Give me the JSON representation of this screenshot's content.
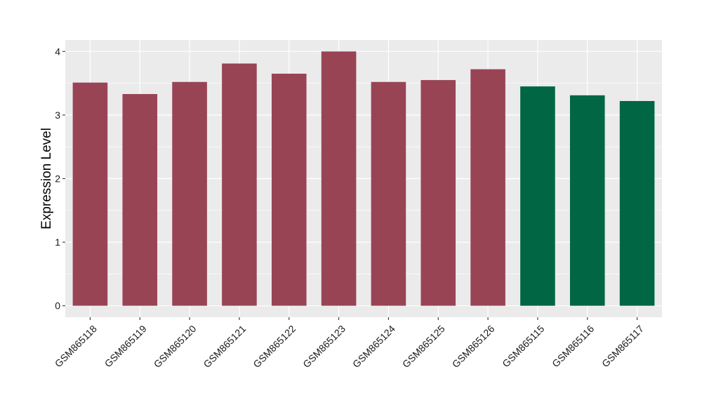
{
  "chart_data": {
    "type": "bar",
    "title": "",
    "xlabel": "",
    "ylabel": "Expression Level",
    "ylim": [
      -0.18,
      4.18
    ],
    "yticks": [
      0,
      1,
      2,
      3,
      4
    ],
    "ytick_labels": [
      "0",
      "1",
      "2",
      "3",
      "4"
    ],
    "grid": true,
    "legend": "none",
    "categories": [
      "GSM865118",
      "GSM865119",
      "GSM865120",
      "GSM865121",
      "GSM865122",
      "GSM865123",
      "GSM865124",
      "GSM865125",
      "GSM865126",
      "GSM865115",
      "GSM865116",
      "GSM865117"
    ],
    "values": [
      3.51,
      3.33,
      3.52,
      3.81,
      3.65,
      4.0,
      3.52,
      3.55,
      3.72,
      3.45,
      3.31,
      3.22
    ],
    "bar_colors": [
      "#994455",
      "#994455",
      "#994455",
      "#994455",
      "#994455",
      "#994455",
      "#994455",
      "#994455",
      "#994455",
      "#006644",
      "#006644",
      "#006644"
    ],
    "panel_background": "#ebebeb",
    "grid_color": "#ffffff"
  }
}
